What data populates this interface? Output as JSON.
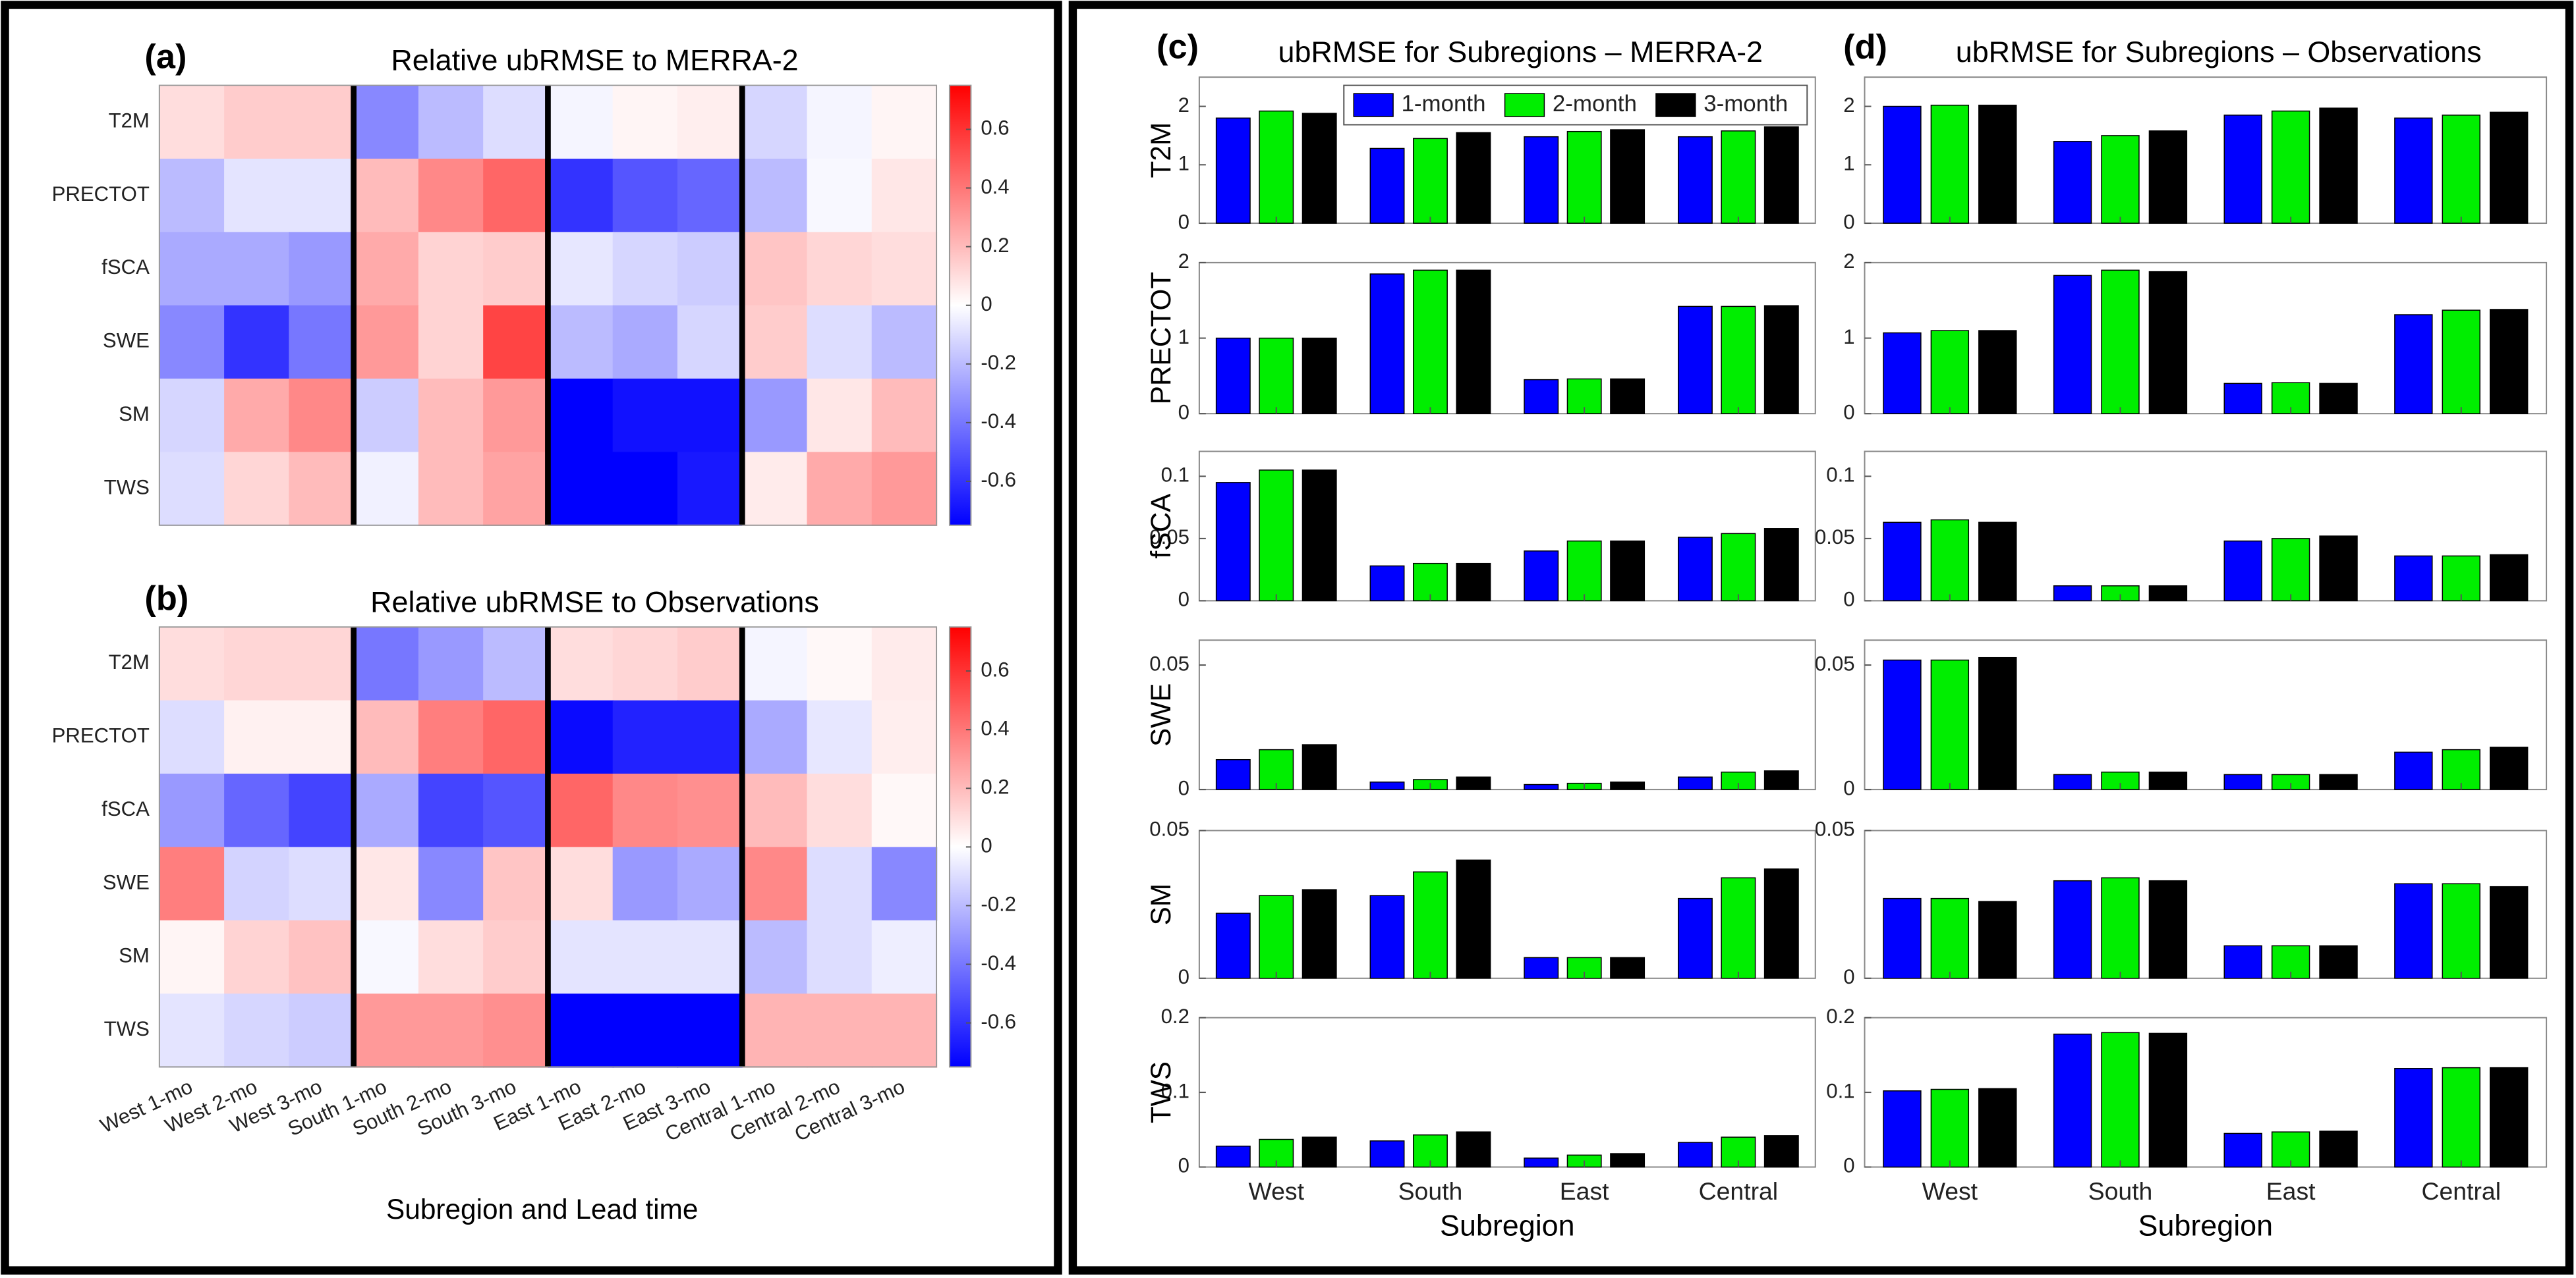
{
  "chart_data": [
    {
      "type": "heatmap",
      "panel_label": "(a)",
      "title": "Relative ubRMSE to MERRA-2",
      "rows": [
        "T2M",
        "PRECTOT",
        "fSCA",
        "SWE",
        "SM",
        "TWS"
      ],
      "values": [
        [
          0.1,
          0.15,
          0.15,
          -0.35,
          -0.2,
          -0.1,
          -0.03,
          0.03,
          0.05,
          -0.12,
          -0.03,
          0.03
        ],
        [
          -0.2,
          -0.08,
          -0.08,
          0.2,
          0.35,
          0.45,
          -0.6,
          -0.5,
          -0.45,
          -0.2,
          -0.02,
          0.07
        ],
        [
          -0.25,
          -0.25,
          -0.3,
          0.25,
          0.13,
          0.15,
          -0.07,
          -0.12,
          -0.15,
          0.17,
          0.12,
          0.1
        ],
        [
          -0.35,
          -0.6,
          -0.4,
          0.3,
          0.13,
          0.55,
          -0.2,
          -0.25,
          -0.12,
          0.15,
          -0.1,
          -0.2
        ],
        [
          -0.12,
          0.25,
          0.35,
          -0.15,
          0.2,
          0.3,
          -0.75,
          -0.7,
          -0.7,
          -0.3,
          0.07,
          0.2
        ],
        [
          -0.1,
          0.12,
          0.2,
          -0.04,
          0.2,
          0.27,
          -0.75,
          -0.75,
          -0.68,
          0.06,
          0.25,
          0.3
        ]
      ],
      "clim": [
        -0.75,
        0.75
      ],
      "cticks": [
        -0.6,
        -0.4,
        -0.2,
        0,
        0.2,
        0.4,
        0.6
      ],
      "colormap": [
        "#0000ff",
        "#ffffff",
        "#ff0000"
      ]
    },
    {
      "type": "heatmap",
      "panel_label": "(b)",
      "title": "Relative ubRMSE to Observations",
      "rows": [
        "T2M",
        "PRECTOT",
        "fSCA",
        "SWE",
        "SM",
        "TWS"
      ],
      "columns": [
        "West 1-mo",
        "West 2-mo",
        "West 3-mo",
        "South 1-mo",
        "South 2-mo",
        "South 3-mo",
        "East 1-mo",
        "East 2-mo",
        "East 3-mo",
        "Central 1-mo",
        "Central 2-mo",
        "Central 3-mo"
      ],
      "xlabel": "Subregion and Lead time",
      "values": [
        [
          0.1,
          0.12,
          0.12,
          -0.4,
          -0.3,
          -0.2,
          0.1,
          0.12,
          0.15,
          -0.03,
          0.02,
          0.06
        ],
        [
          -0.1,
          0.04,
          0.04,
          0.2,
          0.38,
          0.45,
          -0.72,
          -0.65,
          -0.65,
          -0.25,
          -0.07,
          0.05
        ],
        [
          -0.3,
          -0.45,
          -0.55,
          -0.25,
          -0.55,
          -0.5,
          0.45,
          0.35,
          0.33,
          0.2,
          0.1,
          0.02
        ],
        [
          0.38,
          -0.13,
          -0.1,
          0.07,
          -0.35,
          0.17,
          0.1,
          -0.3,
          -0.25,
          0.35,
          -0.1,
          -0.35
        ],
        [
          0.03,
          0.13,
          0.18,
          -0.02,
          0.1,
          0.15,
          -0.08,
          -0.08,
          -0.08,
          -0.2,
          -0.1,
          -0.05
        ],
        [
          -0.08,
          -0.12,
          -0.15,
          0.3,
          0.3,
          0.33,
          -0.75,
          -0.75,
          -0.75,
          0.22,
          0.22,
          0.22
        ]
      ],
      "clim": [
        -0.75,
        0.75
      ],
      "cticks": [
        -0.6,
        -0.4,
        -0.2,
        0,
        0.2,
        0.4,
        0.6
      ],
      "colormap": [
        "#0000ff",
        "#ffffff",
        "#ff0000"
      ]
    },
    {
      "type": "bar",
      "panel_label": "(c)",
      "title": "ubRMSE for Subregions – MERRA-2",
      "categories": [
        "West",
        "South",
        "East",
        "Central"
      ],
      "xlabel": "Subregion",
      "legend": "top-right",
      "series": [
        {
          "name": "1-month",
          "color": "#0000ff"
        },
        {
          "name": "2-month",
          "color": "#00ee00"
        },
        {
          "name": "3-month",
          "color": "#000000"
        }
      ],
      "panels": [
        {
          "ylabel": "T2M",
          "ylim": [
            0,
            2.5
          ],
          "yticks": [
            0,
            1,
            2
          ],
          "values": [
            [
              1.8,
              1.28,
              1.48,
              1.48
            ],
            [
              1.92,
              1.45,
              1.57,
              1.58
            ],
            [
              1.88,
              1.55,
              1.6,
              1.65
            ]
          ]
        },
        {
          "ylabel": "PRECTOT",
          "ylim": [
            0,
            2
          ],
          "yticks": [
            0,
            1,
            2
          ],
          "values": [
            [
              1.0,
              1.85,
              0.45,
              1.42
            ],
            [
              1.0,
              1.9,
              0.46,
              1.42
            ],
            [
              1.0,
              1.9,
              0.46,
              1.43
            ]
          ]
        },
        {
          "ylabel": "fSCA",
          "ylim": [
            0,
            0.12
          ],
          "yticks": [
            0,
            0.05,
            0.1
          ],
          "values": [
            [
              0.095,
              0.028,
              0.04,
              0.051
            ],
            [
              0.105,
              0.03,
              0.048,
              0.054
            ],
            [
              0.105,
              0.03,
              0.048,
              0.058
            ]
          ]
        },
        {
          "ylabel": "SWE",
          "ylim": [
            0,
            0.06
          ],
          "yticks": [
            0,
            0.05
          ],
          "values": [
            [
              0.012,
              0.003,
              0.002,
              0.005
            ],
            [
              0.016,
              0.004,
              0.0025,
              0.007
            ],
            [
              0.018,
              0.005,
              0.003,
              0.0075
            ]
          ]
        },
        {
          "ylabel": "SM",
          "ylim": [
            0,
            0.05
          ],
          "yticks": [
            0,
            0.05
          ],
          "values": [
            [
              0.022,
              0.028,
              0.007,
              0.027
            ],
            [
              0.028,
              0.036,
              0.007,
              0.034
            ],
            [
              0.03,
              0.04,
              0.007,
              0.037
            ]
          ]
        },
        {
          "ylabel": "TWS",
          "ylim": [
            0,
            0.2
          ],
          "yticks": [
            0,
            0.1,
            0.2
          ],
          "values": [
            [
              0.028,
              0.035,
              0.012,
              0.033
            ],
            [
              0.037,
              0.043,
              0.016,
              0.04
            ],
            [
              0.04,
              0.047,
              0.018,
              0.042
            ]
          ]
        }
      ]
    },
    {
      "type": "bar",
      "panel_label": "(d)",
      "title": "ubRMSE for Subregions – Observations",
      "categories": [
        "West",
        "South",
        "East",
        "Central"
      ],
      "xlabel": "Subregion",
      "series_colors": [
        "#0000ff",
        "#00ee00",
        "#000000"
      ],
      "panels": [
        {
          "ylim": [
            0,
            2.5
          ],
          "yticks": [
            0,
            1,
            2
          ],
          "values": [
            [
              2.0,
              1.4,
              1.85,
              1.8
            ],
            [
              2.02,
              1.5,
              1.92,
              1.85
            ],
            [
              2.02,
              1.58,
              1.97,
              1.9
            ]
          ]
        },
        {
          "ylim": [
            0,
            2
          ],
          "yticks": [
            0,
            1,
            2
          ],
          "values": [
            [
              1.07,
              1.83,
              0.4,
              1.31
            ],
            [
              1.1,
              1.9,
              0.41,
              1.37
            ],
            [
              1.1,
              1.88,
              0.4,
              1.38
            ]
          ]
        },
        {
          "ylim": [
            0,
            0.12
          ],
          "yticks": [
            0,
            0.05,
            0.1
          ],
          "values": [
            [
              0.063,
              0.012,
              0.048,
              0.036
            ],
            [
              0.065,
              0.012,
              0.05,
              0.036
            ],
            [
              0.063,
              0.012,
              0.052,
              0.037
            ]
          ]
        },
        {
          "ylim": [
            0,
            0.06
          ],
          "yticks": [
            0,
            0.05
          ],
          "values": [
            [
              0.052,
              0.006,
              0.006,
              0.015
            ],
            [
              0.052,
              0.007,
              0.006,
              0.016
            ],
            [
              0.053,
              0.007,
              0.006,
              0.017
            ]
          ]
        },
        {
          "ylim": [
            0,
            0.05
          ],
          "yticks": [
            0,
            0.05
          ],
          "values": [
            [
              0.027,
              0.033,
              0.011,
              0.032
            ],
            [
              0.027,
              0.034,
              0.011,
              0.032
            ],
            [
              0.026,
              0.033,
              0.011,
              0.031
            ]
          ]
        },
        {
          "ylim": [
            0,
            0.2
          ],
          "yticks": [
            0,
            0.1,
            0.2
          ],
          "values": [
            [
              0.102,
              0.178,
              0.045,
              0.132
            ],
            [
              0.104,
              0.18,
              0.047,
              0.133
            ],
            [
              0.105,
              0.179,
              0.048,
              0.133
            ]
          ]
        }
      ]
    }
  ]
}
